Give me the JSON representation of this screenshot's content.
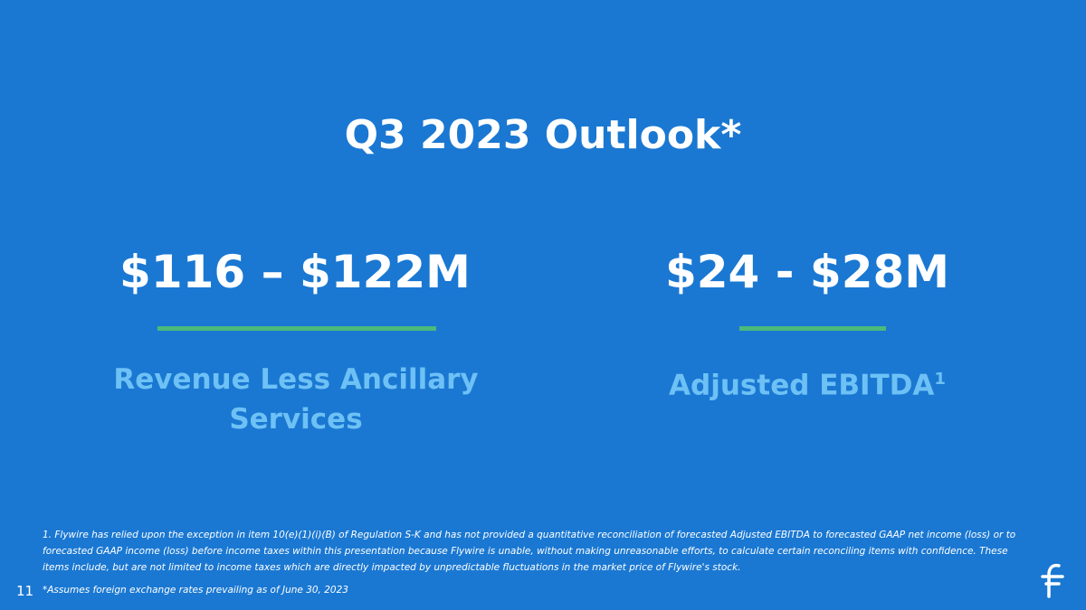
{
  "title": "Q3 2023 Outlook*",
  "metrics": [
    {
      "value": "$116 – $122M",
      "label": "Revenue Less Ancillary Services"
    },
    {
      "value": "$24 - $28M",
      "label": "Adjusted EBITDA",
      "footnote": "1"
    }
  ],
  "footnote": "1. Flywire has relied upon the exception in item 10(e)(1)(i)(B) of Regulation S-K and has not provided a quantitative reconciliation of forecasted Adjusted EBITDA to forecasted GAAP net income (loss) or to forecasted GAAP income (loss) before income taxes within this presentation because Flywire is unable, without making unreasonable efforts, to calculate certain reconciling items with confidence. These items include, but are not limited to income taxes which are directly impacted by unpredictable fluctuations in the market price of Flywire's stock.",
  "page_number": "11",
  "assumption": "*Assumes foreign exchange rates prevailing as of June 30, 2023"
}
